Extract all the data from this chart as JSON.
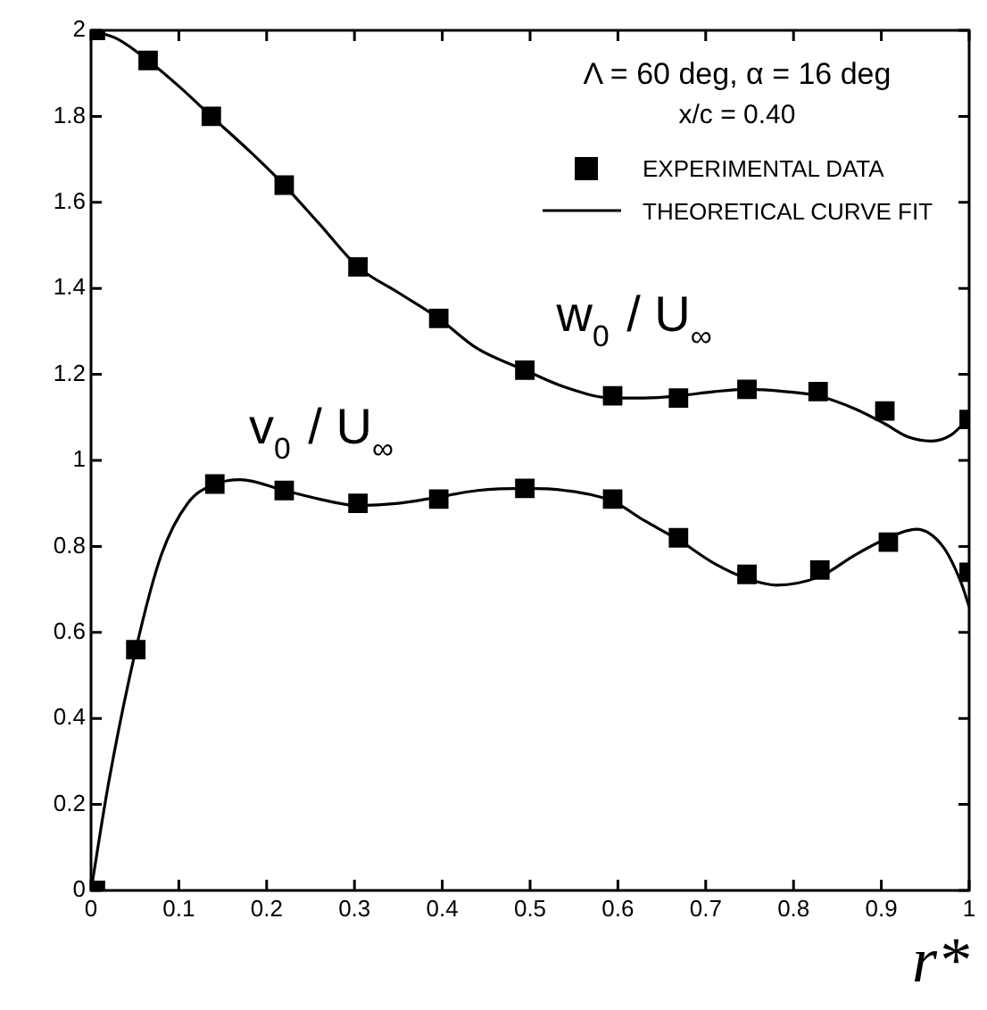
{
  "chart_data": {
    "type": "scatter",
    "xlabel": "r*",
    "xlim": [
      0,
      1
    ],
    "xticks": [
      0,
      0.1,
      0.2,
      0.3,
      0.4,
      0.5,
      0.6,
      0.7,
      0.8,
      0.9,
      1
    ],
    "ylim": [
      0,
      2
    ],
    "yticks": [
      0,
      0.2,
      0.4,
      0.6,
      0.8,
      1,
      1.2,
      1.4,
      1.6,
      1.8,
      2
    ],
    "grid": false,
    "legend": "top right",
    "annotations": [
      "Λ = 60 deg, α = 16 deg",
      "x/c = 0.40",
      "w$_{0}$ / U$_{∞}$",
      "v$_{0}$ / U$_{∞}$"
    ],
    "series": [
      {
        "name": "EXPERIMENTAL DATA",
        "color": "#000000",
        "marker": "square",
        "x": [
          0.005,
          0.065,
          0.137,
          0.22,
          0.304,
          0.396,
          0.494,
          0.594,
          0.669,
          0.747,
          0.828,
          0.904,
          1.0
        ],
        "values": [
          2.0,
          1.93,
          1.8,
          1.64,
          1.45,
          1.33,
          1.21,
          1.15,
          1.145,
          1.165,
          1.16,
          1.115,
          1.095
        ]
      },
      {
        "color": "#000000",
        "marker": "square",
        "x": [
          0.005,
          0.051,
          0.141,
          0.22,
          0.304,
          0.396,
          0.494,
          0.594,
          0.669,
          0.747,
          0.83,
          0.908,
          1.0
        ],
        "values": [
          0.0,
          0.56,
          0.945,
          0.93,
          0.9,
          0.91,
          0.935,
          0.91,
          0.82,
          0.735,
          0.745,
          0.81,
          0.74
        ]
      },
      {
        "name": "THEORETICAL CURVE FIT",
        "type": "line",
        "color": "#000000",
        "line_style": "solid",
        "marker": "none",
        "x": [
          0,
          0.03,
          0.065,
          0.1,
          0.137,
          0.18,
          0.22,
          0.26,
          0.304,
          0.35,
          0.396,
          0.44,
          0.494,
          0.54,
          0.594,
          0.63,
          0.669,
          0.71,
          0.747,
          0.79,
          0.828,
          0.87,
          0.904,
          0.93,
          0.957,
          0.98,
          1.0
        ],
        "values": [
          2.0,
          1.98,
          1.93,
          1.87,
          1.8,
          1.72,
          1.64,
          1.55,
          1.45,
          1.39,
          1.33,
          1.26,
          1.21,
          1.17,
          1.145,
          1.145,
          1.15,
          1.16,
          1.165,
          1.16,
          1.15,
          1.12,
          1.085,
          1.055,
          1.045,
          1.06,
          1.1
        ]
      },
      {
        "type": "line",
        "color": "#000000",
        "line_style": "solid",
        "marker": "none",
        "x": [
          0,
          0.02,
          0.051,
          0.08,
          0.11,
          0.141,
          0.17,
          0.22,
          0.26,
          0.304,
          0.35,
          0.396,
          0.44,
          0.494,
          0.54,
          0.594,
          0.63,
          0.669,
          0.71,
          0.747,
          0.78,
          0.83,
          0.87,
          0.908,
          0.94,
          0.97,
          0.99,
          1.0
        ],
        "values": [
          0,
          0.25,
          0.56,
          0.78,
          0.9,
          0.945,
          0.955,
          0.93,
          0.91,
          0.895,
          0.9,
          0.915,
          0.93,
          0.935,
          0.93,
          0.905,
          0.86,
          0.815,
          0.76,
          0.725,
          0.71,
          0.73,
          0.78,
          0.82,
          0.84,
          0.8,
          0.72,
          0.66
        ]
      }
    ]
  }
}
